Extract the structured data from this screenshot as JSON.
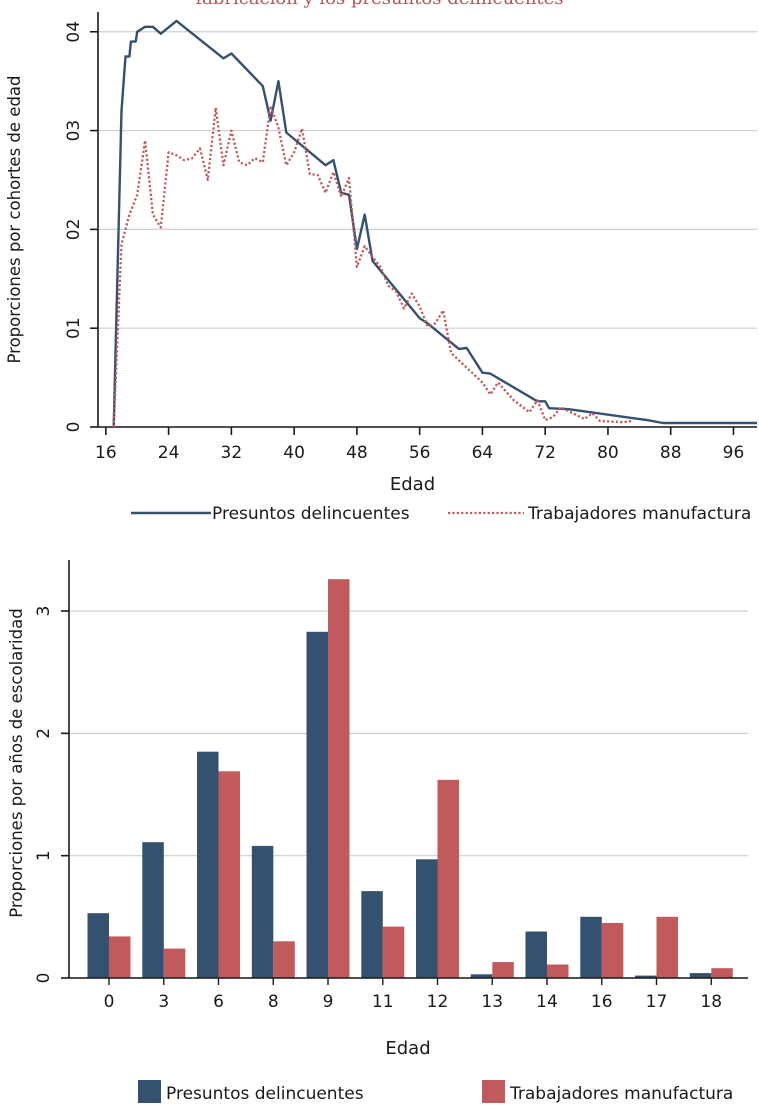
{
  "figure": {
    "caption_fragment": "fabricación y los presuntos delincuentes"
  },
  "colors": {
    "delincuentes": "#34526f",
    "manufactura": "#c05a5c",
    "grid": "#cfcfcf",
    "axis": "#1a1a1a"
  },
  "chart_data": [
    {
      "type": "line",
      "xlabel": "Edad",
      "ylabel": "Proporciones por cohortes de edad",
      "xlim": [
        15,
        99
      ],
      "ylim": [
        0,
        0.042
      ],
      "x_ticks": [
        16,
        24,
        32,
        40,
        48,
        56,
        64,
        72,
        80,
        88,
        96
      ],
      "y_ticks": [
        0,
        0.01,
        0.02,
        0.03,
        0.04
      ],
      "y_tick_labels": [
        "0",
        "01",
        "02",
        "03",
        "04"
      ],
      "grid": true,
      "legend_position": "bottom",
      "series": [
        {
          "name": "Presuntos delincuentes",
          "style": "solid",
          "points": [
            [
              17,
              0.0
            ],
            [
              18,
              0.032
            ],
            [
              18.5,
              0.0375
            ],
            [
              19,
              0.0375
            ],
            [
              19.2,
              0.039
            ],
            [
              19.8,
              0.039
            ],
            [
              20,
              0.04
            ],
            [
              21,
              0.0405
            ],
            [
              22,
              0.0405
            ],
            [
              23,
              0.0398
            ],
            [
              25,
              0.0411
            ],
            [
              31,
              0.0373
            ],
            [
              32,
              0.0378
            ],
            [
              36,
              0.0345
            ],
            [
              37,
              0.031
            ],
            [
              38,
              0.035
            ],
            [
              39,
              0.0298
            ],
            [
              44,
              0.0265
            ],
            [
              45,
              0.027
            ],
            [
              46,
              0.0237
            ],
            [
              47,
              0.0235
            ],
            [
              48,
              0.018
            ],
            [
              49,
              0.0215
            ],
            [
              50,
              0.0168
            ],
            [
              56,
              0.011
            ],
            [
              57,
              0.0105
            ],
            [
              61,
              0.0079
            ],
            [
              62,
              0.008
            ],
            [
              64,
              0.0055
            ],
            [
              65,
              0.0054
            ],
            [
              71,
              0.0026
            ],
            [
              72,
              0.0026
            ],
            [
              72.5,
              0.0019
            ],
            [
              75,
              0.0018
            ],
            [
              85,
              0.0007
            ],
            [
              87,
              0.0004
            ],
            [
              100,
              0.0004
            ]
          ]
        },
        {
          "name": "Trabajadores manufactura",
          "style": "dotted",
          "points": [
            [
              17,
              0.0
            ],
            [
              18,
              0.0185
            ],
            [
              19,
              0.0215
            ],
            [
              20,
              0.0235
            ],
            [
              21,
              0.029
            ],
            [
              22,
              0.0215
            ],
            [
              23,
              0.0202
            ],
            [
              24,
              0.0278
            ],
            [
              25,
              0.0275
            ],
            [
              26,
              0.027
            ],
            [
              27,
              0.0272
            ],
            [
              28,
              0.0282
            ],
            [
              29,
              0.025
            ],
            [
              30,
              0.0323
            ],
            [
              31,
              0.0265
            ],
            [
              32,
              0.03
            ],
            [
              33,
              0.0268
            ],
            [
              34,
              0.0265
            ],
            [
              35,
              0.0272
            ],
            [
              36,
              0.0268
            ],
            [
              37,
              0.0325
            ],
            [
              38,
              0.0303
            ],
            [
              39,
              0.0265
            ],
            [
              40,
              0.0278
            ],
            [
              41,
              0.0302
            ],
            [
              42,
              0.0256
            ],
            [
              43,
              0.0255
            ],
            [
              44,
              0.0237
            ],
            [
              45,
              0.0258
            ],
            [
              46,
              0.0233
            ],
            [
              47,
              0.0252
            ],
            [
              48,
              0.0162
            ],
            [
              49,
              0.0183
            ],
            [
              50,
              0.0172
            ],
            [
              51,
              0.0162
            ],
            [
              52,
              0.0143
            ],
            [
              53,
              0.0137
            ],
            [
              54,
              0.012
            ],
            [
              55,
              0.0135
            ],
            [
              56,
              0.0122
            ],
            [
              57,
              0.0102
            ],
            [
              58,
              0.0105
            ],
            [
              59,
              0.0118
            ],
            [
              60,
              0.0075
            ],
            [
              64,
              0.0045
            ],
            [
              65,
              0.0033
            ],
            [
              66,
              0.0045
            ],
            [
              68,
              0.0027
            ],
            [
              70,
              0.0015
            ],
            [
              71,
              0.0027
            ],
            [
              72,
              0.0007
            ],
            [
              73,
              0.001
            ],
            [
              74,
              0.002
            ],
            [
              77,
              0.0008
            ],
            [
              78,
              0.0014
            ],
            [
              79,
              0.0006
            ],
            [
              82,
              0.0005
            ],
            [
              83,
              0.0006
            ]
          ]
        }
      ]
    },
    {
      "type": "bar",
      "xlabel": "Edad",
      "ylabel": "Proporciones por años de escolaridad",
      "ylim": [
        0,
        3.27
      ],
      "y_ticks": [
        0,
        1,
        2,
        3
      ],
      "y_tick_labels": [
        "0",
        "1",
        "2",
        "3"
      ],
      "grid": true,
      "legend_position": "bottom",
      "categories": [
        "0",
        "3",
        "6",
        "8",
        "9",
        "11",
        "12",
        "13",
        "14",
        "16",
        "17",
        "18"
      ],
      "series": [
        {
          "name": "Presuntos delincuentes",
          "values": [
            0.53,
            1.11,
            1.85,
            1.08,
            2.83,
            0.71,
            0.97,
            0.03,
            0.38,
            0.5,
            0.02,
            0.04
          ]
        },
        {
          "name": "Trabajadores manufactura",
          "values": [
            0.34,
            0.24,
            1.69,
            0.3,
            3.26,
            0.42,
            1.62,
            0.13,
            0.11,
            0.45,
            0.5,
            0.08
          ]
        }
      ]
    }
  ]
}
